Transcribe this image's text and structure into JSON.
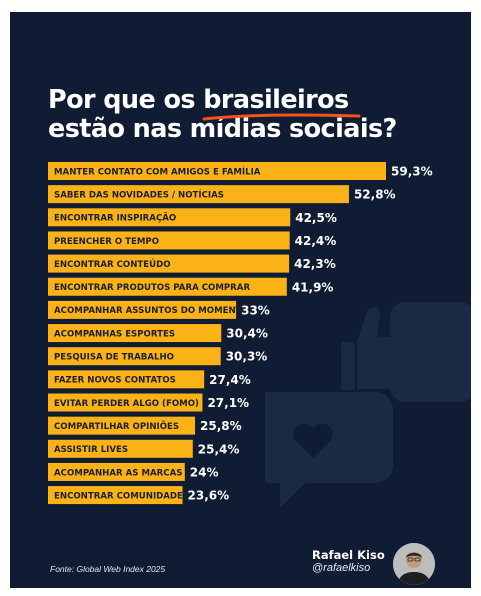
{
  "title": {
    "line1_pre": "Por que os ",
    "line1_highlight": "brasileiros",
    "line2": "estão nas mídias sociais?"
  },
  "colors": {
    "background": "#0f1c33",
    "bar": "#fbb217",
    "underline": "#f2531b"
  },
  "chart_data": {
    "type": "bar",
    "orientation": "horizontal",
    "categories": [
      "MANTER CONTATO COM AMIGOS E FAMÍLIA",
      "SABER DAS NOVIDADES / NOTÍCIAS",
      "ENCONTRAR INSPIRAÇÃO",
      "PREENCHER O TEMPO",
      "ENCONTRAR CONTEÚDO",
      "ENCONTRAR PRODUTOS PARA COMPRAR",
      "ACOMPANHAR ASSUNTOS DO MOMENTO",
      "ACOMPANHAS ESPORTES",
      "PESQUISA DE TRABALHO",
      "FAZER NOVOS CONTATOS",
      "EVITAR PERDER ALGO (FOMO)",
      "COMPARTILHAR OPINIÕES",
      "ASSISTIR LIVES",
      "ACOMPANHAR AS MARCAS",
      "ENCONTRAR COMUNIDADES"
    ],
    "values": [
      59.3,
      52.8,
      42.5,
      42.4,
      42.3,
      41.9,
      33,
      30.4,
      30.3,
      27.4,
      27.1,
      25.8,
      25.4,
      24,
      23.6
    ],
    "value_labels": [
      "59,3%",
      "52,8%",
      "42,5%",
      "42,4%",
      "42,3%",
      "41,9%",
      "33%",
      "30,4%",
      "30,3%",
      "27,4%",
      "27,1%",
      "25,8%",
      "25,4%",
      "24%",
      "23,6%"
    ]
  },
  "source": "Fonte: Global Web Index 2025",
  "author": {
    "name": "Rafael Kiso",
    "handle": "@rafaelkiso"
  }
}
